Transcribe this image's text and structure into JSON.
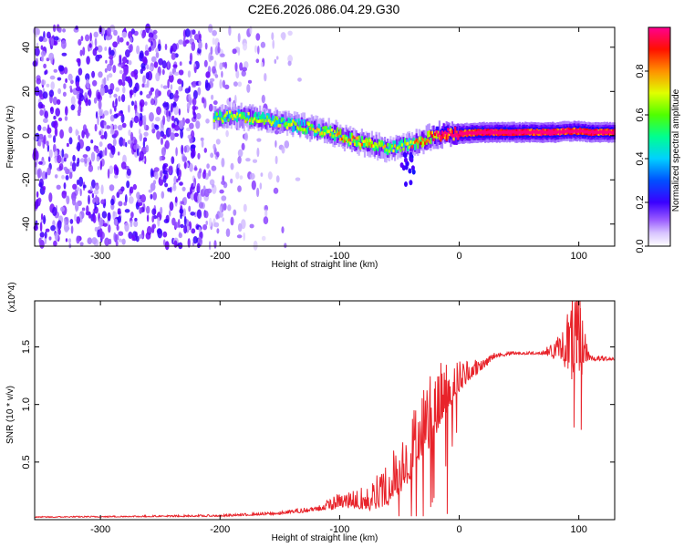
{
  "figure_title": "C2E6.2026.086.04.29.G30",
  "chart_data": [
    {
      "type": "heatmap",
      "title": "C2E6.2026.086.04.29.G30",
      "xlabel": "Height of straight line (km)",
      "ylabel": "Frequency (Hz)",
      "xlim": [
        -355,
        130
      ],
      "ylim": [
        -50,
        49
      ],
      "xticks": [
        -300,
        -200,
        -100,
        0,
        100
      ],
      "yticks": [
        -40,
        -20,
        0,
        20,
        40
      ],
      "colorbar": {
        "label": "Normalized spectral amplitude",
        "range": [
          0,
          1
        ],
        "ticks": [
          "0.0",
          "0.2",
          "0.4",
          "0.6",
          "0.8"
        ],
        "colors": [
          "#ffffff",
          "#b28cff",
          "#6a00ff",
          "#1a00ff",
          "#0044ff",
          "#00c8ff",
          "#00ff80",
          "#7fff00",
          "#ffff00",
          "#ff8000",
          "#ff0000",
          "#ff0080"
        ]
      },
      "noise_region": {
        "x_range": [
          -355,
          -130
        ],
        "dense_until": -210,
        "amplitude": 0.2
      },
      "ridge": {
        "x": [
          -205,
          -190,
          -170,
          -150,
          -130,
          -110,
          -90,
          -75,
          -60,
          -50,
          -40,
          -30,
          -20,
          -10,
          0,
          20,
          40,
          60,
          80,
          90,
          100,
          110,
          130
        ],
        "freq": [
          8,
          9,
          8,
          6,
          4,
          2,
          -2,
          -4,
          -6,
          -5,
          -4,
          -2,
          0,
          1,
          1,
          1.5,
          1.5,
          1.5,
          1.5,
          2,
          2,
          1.5,
          1.5
        ],
        "amplitude": [
          0.45,
          0.5,
          0.5,
          0.48,
          0.5,
          0.55,
          0.58,
          0.58,
          0.52,
          0.5,
          0.55,
          0.6,
          0.75,
          0.85,
          0.88,
          0.9,
          0.88,
          0.9,
          0.92,
          0.88,
          0.9,
          0.88,
          0.88
        ]
      }
    },
    {
      "type": "line",
      "xlabel": "Height of straight line (km)",
      "ylabel": "SNR (10 * v/v)",
      "y_multiplier": "(x10^4)",
      "xlim": [
        -355,
        130
      ],
      "ylim": [
        0,
        1.9
      ],
      "xticks": [
        -300,
        -200,
        -100,
        0,
        100
      ],
      "yticks": [
        0.5,
        1.0,
        1.5
      ],
      "ytick_labels": [
        "0.5",
        "1.0",
        "1.5"
      ],
      "color": "#e8232a",
      "envelope": {
        "x": [
          -355,
          -200,
          -150,
          -120,
          -100,
          -90,
          -75,
          -60,
          -50,
          -40,
          -30,
          -20,
          -10,
          0,
          10,
          20,
          30,
          50,
          70,
          85,
          90,
          95,
          100,
          105,
          110,
          130
        ],
        "base": [
          0.02,
          0.03,
          0.05,
          0.08,
          0.12,
          0.13,
          0.12,
          0.2,
          0.3,
          0.45,
          0.65,
          0.85,
          1.0,
          1.15,
          1.25,
          1.32,
          1.42,
          1.44,
          1.44,
          1.42,
          1.38,
          1.36,
          1.36,
          1.38,
          1.39,
          1.39
        ],
        "noise": [
          0.005,
          0.01,
          0.015,
          0.03,
          0.08,
          0.1,
          0.12,
          0.25,
          0.3,
          0.35,
          0.4,
          0.35,
          0.28,
          0.18,
          0.12,
          0.06,
          0.03,
          0.015,
          0.02,
          0.15,
          0.35,
          0.45,
          0.5,
          0.2,
          0.03,
          0.02
        ]
      },
      "peaks": [
        {
          "x": 98,
          "y": 1.85
        },
        {
          "x": 101,
          "y": 1.9
        },
        {
          "x": 96,
          "y": 0.8
        },
        {
          "x": 102,
          "y": 0.78
        },
        {
          "x": -20,
          "y": 1.2
        },
        {
          "x": -10,
          "y": 0.05
        }
      ]
    }
  ]
}
